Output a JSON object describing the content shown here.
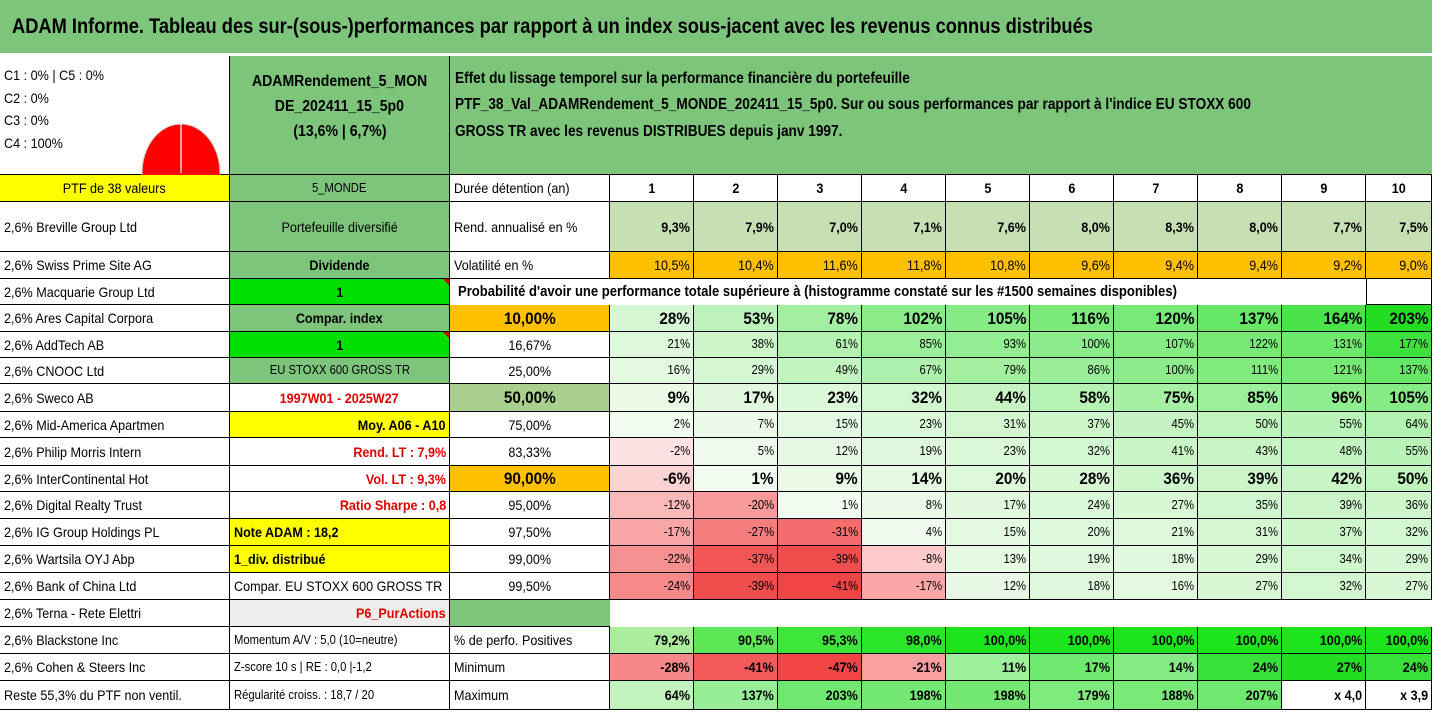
{
  "header": {
    "title": "ADAM Informe. Tableau des sur-(sous-)performances par rapport à un index sous-jacent avec les revenus connus distribués"
  },
  "pie": {
    "labels": [
      "C1 : 0% | C5 : 0%",
      "C2 : 0%",
      "C3 : 0%",
      "C4 : 100%"
    ],
    "fill_color": "#ff0000"
  },
  "portfolio_name": [
    "ADAMRendement_5_MON",
    "DE_202411_15_5p0",
    "(13,6% | 6,7%)"
  ],
  "description": [
    "Effet du lissage temporel sur la performance financière du portefeuille",
    "PTF_38_Val_ADAMRendement_5_MONDE_202411_15_5p0. Sur ou sous performances par rapport à l'indice EU STOXX 600",
    "GROSS TR avec les revenus DISTRIBUES depuis janv 1997."
  ],
  "left_header": {
    "col_a": "PTF de 38 valeurs",
    "col_b": "5_MONDE"
  },
  "holdings": [
    "2,6% Breville Group Ltd",
    "2,6% Swiss Prime Site AG",
    "2,6% Macquarie Group Ltd",
    "2,6% Ares Capital Corpora",
    "2,6% AddTech AB",
    "2,6% CNOOC Ltd",
    "2,6% Sweco AB",
    "2,6% Mid-America Apartmen",
    "2,6% Philip Morris Intern",
    "2,6% InterContinental Hot",
    "2,6% Digital Realty Trust",
    "2,6% IG Group Holdings PL",
    "2,6% Wartsila OYJ Abp",
    "2,6% Bank of China Ltd",
    "2,6% Terna - Rete Elettri",
    "2,6% Blackstone Inc",
    "2,6% Cohen & Steers Inc",
    "Reste 55,3% du PTF non ventil."
  ],
  "side_info": [
    "Portefeuille diversifié",
    "Dividende",
    "1",
    "Compar. index",
    "1",
    "EU STOXX 600 GROSS TR",
    "1997W01 - 2025W27",
    "Moy. A06 - A10",
    "Rend. LT : 7,9%",
    "Vol. LT : 9,3%",
    "Ratio Sharpe : 0,8",
    "Note ADAM : 18,2",
    "1_div. distribué",
    "Compar. EU STOXX 600 GROSS TR",
    "P6_PurActions",
    "Momentum A/V : 5,0 (10=neutre)",
    "Z-score 10 s | RE : 0,0 |-1,2",
    "Régularité croiss. : 18,7 / 20"
  ],
  "horizon": {
    "label": "Durée détention (an)",
    "years": [
      "1",
      "2",
      "3",
      "4",
      "5",
      "6",
      "7",
      "8",
      "9",
      "10"
    ]
  },
  "rend": {
    "label": "Rend. annualisé en %",
    "values": [
      "9,3%",
      "7,9%",
      "7,0%",
      "7,1%",
      "7,6%",
      "8,0%",
      "8,3%",
      "8,0%",
      "7,7%",
      "7,5%"
    ]
  },
  "vol": {
    "label": "Volatilité en %",
    "values": [
      "10,5%",
      "10,4%",
      "11,6%",
      "11,8%",
      "10,8%",
      "9,6%",
      "9,4%",
      "9,4%",
      "9,2%",
      "9,0%"
    ]
  },
  "probability_title": "Probabilité d'avoir une performance totale supérieure à (histogramme constaté sur les #1500 semaines disponibles)",
  "prob_rows": [
    {
      "prob": "10,00%",
      "values": [
        "28%",
        "53%",
        "78%",
        "102%",
        "105%",
        "116%",
        "120%",
        "137%",
        "164%",
        "203%"
      ]
    },
    {
      "prob": "16,67%",
      "values": [
        "21%",
        "38%",
        "61%",
        "85%",
        "93%",
        "100%",
        "107%",
        "122%",
        "131%",
        "177%"
      ]
    },
    {
      "prob": "25,00%",
      "values": [
        "16%",
        "29%",
        "49%",
        "67%",
        "79%",
        "86%",
        "100%",
        "111%",
        "121%",
        "137%"
      ]
    },
    {
      "prob": "50,00%",
      "values": [
        "9%",
        "17%",
        "23%",
        "32%",
        "44%",
        "58%",
        "75%",
        "85%",
        "96%",
        "105%"
      ]
    },
    {
      "prob": "75,00%",
      "values": [
        "2%",
        "7%",
        "15%",
        "23%",
        "31%",
        "37%",
        "45%",
        "50%",
        "55%",
        "64%"
      ]
    },
    {
      "prob": "83,33%",
      "values": [
        "-2%",
        "5%",
        "12%",
        "19%",
        "23%",
        "32%",
        "41%",
        "43%",
        "48%",
        "55%"
      ]
    },
    {
      "prob": "90,00%",
      "values": [
        "-6%",
        "1%",
        "9%",
        "14%",
        "20%",
        "28%",
        "36%",
        "39%",
        "42%",
        "50%"
      ]
    },
    {
      "prob": "95,00%",
      "values": [
        "-12%",
        "-20%",
        "1%",
        "8%",
        "17%",
        "24%",
        "27%",
        "35%",
        "39%",
        "36%"
      ]
    },
    {
      "prob": "97,50%",
      "values": [
        "-17%",
        "-27%",
        "-31%",
        "4%",
        "15%",
        "20%",
        "21%",
        "31%",
        "37%",
        "32%"
      ]
    },
    {
      "prob": "99,00%",
      "values": [
        "-22%",
        "-37%",
        "-39%",
        "-8%",
        "13%",
        "19%",
        "18%",
        "29%",
        "34%",
        "29%"
      ]
    },
    {
      "prob": "99,50%",
      "values": [
        "-24%",
        "-39%",
        "-41%",
        "-17%",
        "12%",
        "18%",
        "16%",
        "27%",
        "32%",
        "27%"
      ]
    }
  ],
  "stats": [
    {
      "label": "% de perfo. Positives",
      "values": [
        "79,2%",
        "90,5%",
        "95,3%",
        "98,0%",
        "100,0%",
        "100,0%",
        "100,0%",
        "100,0%",
        "100,0%",
        "100,0%"
      ]
    },
    {
      "label": "Minimum",
      "values": [
        "-28%",
        "-41%",
        "-47%",
        "-21%",
        "11%",
        "17%",
        "14%",
        "24%",
        "27%",
        "24%"
      ]
    },
    {
      "label": "Maximum",
      "values": [
        "64%",
        "137%",
        "203%",
        "198%",
        "198%",
        "179%",
        "188%",
        "207%",
        "x 4,0",
        "x 3,9"
      ]
    }
  ],
  "colors": {
    "header_green": "#7dc57a",
    "light_green": "#c6e0b4",
    "orange": "#ffc000",
    "yellow": "#ffff00",
    "bright_green": "#00e000",
    "red": "#ff0000"
  }
}
